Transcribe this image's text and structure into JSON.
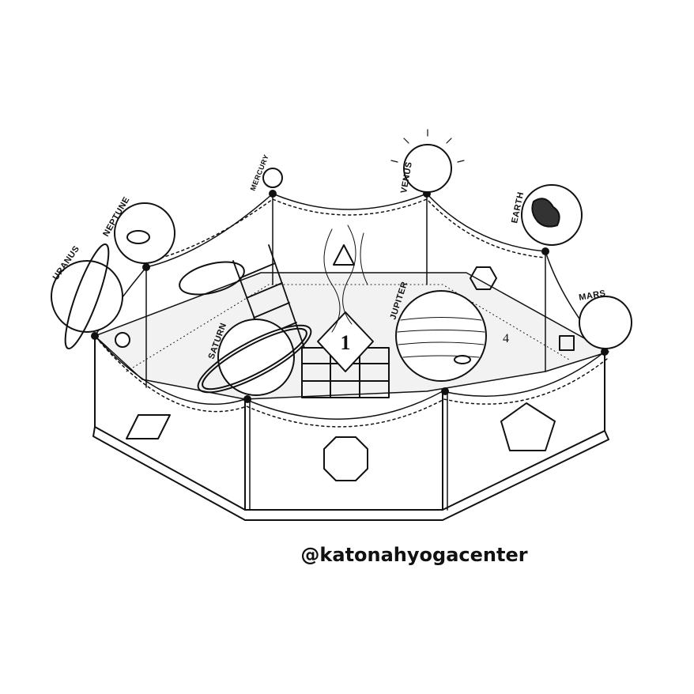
{
  "planets": {
    "uranus": "URANUS",
    "neptune": "NEPTUNE",
    "mercury": "MERCURY",
    "venus": "VENUS",
    "earth": "EARTH",
    "mars": "MARS",
    "saturn": "SATURN",
    "jupiter": "JUPITER"
  },
  "altar_number": "1",
  "jupiter_number": "4",
  "handle": "@katonahyogacenter",
  "colors": {
    "ink": "#111111",
    "paper": "#ffffff"
  }
}
